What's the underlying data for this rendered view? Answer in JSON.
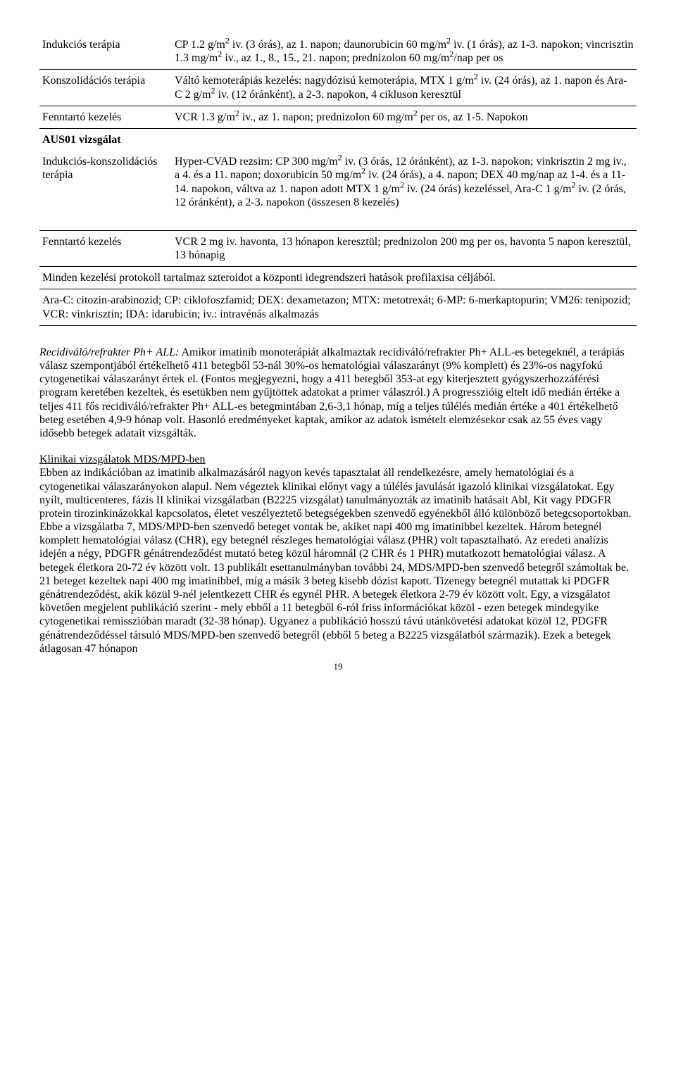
{
  "table": {
    "rows": [
      {
        "label": "Indukciós terápia",
        "text": "CP 1.2 g/m<sup>2</sup> iv. (3 órás), az 1. napon; daunorubicin 60 mg/m<sup>2</sup> iv. (1 órás), az 1-3. napokon; vincrisztin 1.3 mg/m<sup>2</sup> iv., az 1., 8., 15., 21. napon; prednizolon 60 mg/m<sup>2</sup>/nap per os"
      },
      {
        "label": "Konszolidációs terápia",
        "text": "Váltó kemoterápiás kezelés: nagydózisú kemoterápia, MTX 1 g/m<sup>2</sup> iv. (24 órás), az 1. napon és Ara-C 2 g/m<sup>2</sup> iv. (12 óránként), a 2-3. napokon, 4 cikluson keresztül"
      },
      {
        "label": "Fenntartó kezelés",
        "text": "VCR 1.3 g/m<sup>2</sup> iv., az 1. napon; prednizolon 60 mg/m<sup>2</sup> per os, az 1-5. Napokon"
      },
      {
        "label": "AUS01 vizsgálat",
        "head": true,
        "text": ""
      },
      {
        "label": "Indukciós-konszolidációs terápia",
        "text": "Hyper-CVAD rezsim: CP 300 mg/m<sup>2</sup> iv. (3 órás, 12 óránként), az 1-3. napokon; vinkrisztin 2 mg iv., a 4. és a 11. napon; doxorubicin 50 mg/m<sup>2</sup> iv. (24 órás), a 4. napon; DEX 40 mg/nap az 1-4. és a 11-14. napokon, váltva az 1. napon adott MTX 1 g/m<sup>2</sup> iv. (24 órás) kezeléssel, Ara-C 1 g/m<sup>2</sup> iv. (2 órás, 12 óránként), a 2-3. napokon (összesen 8 kezelés)"
      },
      {
        "label": "Fenntartó kezelés",
        "text": "VCR 2 mg iv. havonta, 13 hónapon keresztül; prednizolon 200 mg per os, havonta 5 napon keresztül, 13 hónapig"
      }
    ],
    "note": "Minden kezelési protokoll tartalmaz szteroidot a központi idegrendszeri hatások profilaxisa céljából.",
    "abbrev": "Ara-C: citozin-arabinozid; CP: ciklofoszfamid; DEX: dexametazon; MTX: metotrexát; 6-MP: 6-merkaptopurin; VM26: tenipozid; VCR: vinkrisztin; IDA: idarubicin; iv.: intravénás alkalmazás"
  },
  "body": {
    "p1_lead": "Recidiváló/refrakter Ph+ ALL:",
    "p1_rest": " Amikor imatinib monoterápiát alkalmaztak recidiváló/refrakter Ph+ ALL-es betegeknél, a terápiás válasz szempontjából értékelhető 411 betegből 53-nál 30%-os hematológiai válaszarányt (9% komplett) és 23%-os nagyfokú cytogenetikai válaszarányt értek el. (Fontos megjegyezni, hogy a 411 betegből 353-at egy kiterjesztett gyógyszerhozzáférési program keretében kezeltek, és esetükben nem gyűjtöttek adatokat a primer válaszról.) A progresszióig eltelt idő medián értéke a teljes 411 fős recidiváló/refrakter Ph+ ALL-es betegmintában 2,6-3,1 hónap, míg a teljes túlélés medián értéke a 401 értékelhető beteg esetében 4,9-9 hónap volt. Hasonló eredményeket kaptak, amikor az adatok ismételt elemzésekor csak az 55 éves vagy idősebb betegek adatait vizsgálták.",
    "p2_head": "Klinikai vizsgálatok MDS/MPD-ben",
    "p2_body": "Ebben az indikációban az imatinib alkalmazásáról nagyon kevés tapasztalat áll rendelkezésre, amely hematológiai és a cytogenetikai válaszarányokon alapul. Nem végeztek klinikai előnyt vagy a túlélés javulását igazoló klinikai vizsgálatokat. Egy nyílt, multicenteres, fázis II klinikai vizsgálatban (B2225 vizsgálat) tanulmányozták az imatinib hatásait Abl, Kit vagy PDGFR protein tirozinkinázokkal kapcsolatos, életet veszélyeztető betegségekben szenvedő egyénekből álló különböző betegcsoportokban. Ebbe a vizsgálatba 7, MDS/MPD-ben szenvedő beteget vontak be, akiket napi 400 mg imatinibbel kezeltek. Három betegnél komplett hematológiai válasz (CHR), egy betegnél részleges hematológiai válasz (PHR) volt tapasztalható. Az eredeti analízis idején a négy, PDGFR génátrendeződést mutató beteg közül háromnál (2 CHR és 1 PHR) mutatkozott hematológiai válasz. A betegek életkora 20-72 év között volt. 13 publikált esettanulmányban további 24, MDS/MPD-ben szenvedő betegről számoltak be. 21 beteget kezeltek napi 400 mg imatinibbel, míg a másik 3 beteg kisebb dózist kapott. Tizenegy betegnél mutattak ki PDGFR génátrendeződést, akik közül 9-nél jelentkezett CHR és egynél PHR. A betegek életkora 2-79 év között volt. Egy, a vizsgálatot követően megjelent publikáció szerint - mely ebből a 11 betegből 6-ról friss információkat közöl - ezen betegek mindegyike cytogenetikai remisszióban maradt (32-38 hónap). Ugyanez a publikáció hosszú távú utánkövetési adatokat közöl 12, PDGFR génátrendeződéssel társuló MDS/MPD-ben szenvedő betegről (ebből 5 beteg a B2225 vizsgálatból származik). Ezek a betegek átlagosan 47 hónapon"
  },
  "pagenum": "19"
}
